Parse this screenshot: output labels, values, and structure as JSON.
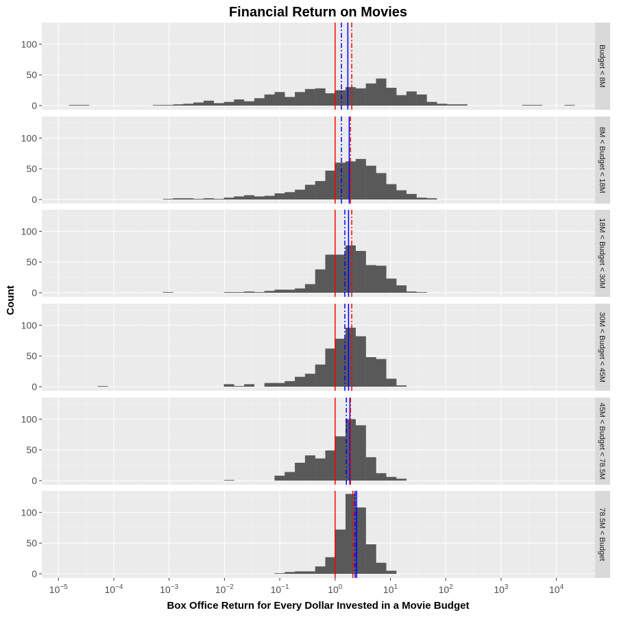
{
  "chart_data": {
    "type": "bar",
    "subtype": "faceted-histogram",
    "title": "Financial Return on Movies",
    "xlabel": "Box Office Return for Every Dollar Invested in a Movie Budget",
    "ylabel": "Count",
    "x_scale": "log10",
    "x_range": [
      5e-06,
      50000
    ],
    "y_range": [
      0,
      130
    ],
    "y_ticks": [
      0,
      50,
      100
    ],
    "x_ticks": [
      {
        "base": "10",
        "exp": "−5",
        "value": 1e-05
      },
      {
        "base": "10",
        "exp": "−4",
        "value": 0.0001
      },
      {
        "base": "10",
        "exp": "−3",
        "value": 0.001
      },
      {
        "base": "10",
        "exp": "−2",
        "value": 0.01
      },
      {
        "base": "10",
        "exp": "−1",
        "value": 0.1
      },
      {
        "base": "10",
        "exp": "0",
        "value": 1
      },
      {
        "base": "10",
        "exp": "1",
        "value": 10
      },
      {
        "base": "10",
        "exp": "2",
        "value": 100
      },
      {
        "base": "10",
        "exp": "3",
        "value": 1000
      },
      {
        "base": "10",
        "exp": "4",
        "value": 10000
      }
    ],
    "grid": true,
    "bin_width_log10": 0.186,
    "bar_color": "#595959",
    "reference_lines": [
      {
        "color": "#ff0000",
        "style": "solid"
      },
      {
        "color": "#ff0000",
        "style": "dashdot"
      },
      {
        "color": "#0000ff",
        "style": "solid"
      },
      {
        "color": "#0000ff",
        "style": "dashdot"
      }
    ],
    "panels": [
      {
        "strip": "Budget < 8M",
        "lines": {
          "red_solid": 1.0,
          "red_dashdot": 2.0,
          "blue_solid": 1.7,
          "blue_dashdot": 1.3
        },
        "bins": [
          [
            1.92e-05,
            1
          ],
          [
            2.92e-05,
            1
          ],
          [
            0.00063,
            1
          ],
          [
            0.00096,
            1
          ],
          [
            0.00146,
            2
          ],
          [
            0.00223,
            3
          ],
          [
            0.0034,
            5
          ],
          [
            0.0052,
            8
          ],
          [
            0.0079,
            4
          ],
          [
            0.0121,
            6
          ],
          [
            0.0184,
            10
          ],
          [
            0.0281,
            7
          ],
          [
            0.0429,
            12
          ],
          [
            0.0654,
            18
          ],
          [
            0.0997,
            22
          ],
          [
            0.152,
            14
          ],
          [
            0.232,
            22
          ],
          [
            0.354,
            27
          ],
          [
            0.54,
            28
          ],
          [
            0.823,
            20
          ],
          [
            1.25,
            25
          ],
          [
            1.91,
            30
          ],
          [
            2.92,
            28
          ],
          [
            4.46,
            36
          ],
          [
            6.8,
            44
          ],
          [
            10.4,
            29
          ],
          [
            15.8,
            17
          ],
          [
            24.1,
            23
          ],
          [
            36.8,
            18
          ],
          [
            56.1,
            6
          ],
          [
            85.6,
            3
          ],
          [
            130,
            2
          ],
          [
            199,
            2
          ],
          [
            2970,
            1
          ],
          [
            4530,
            1
          ],
          [
            17300,
            1
          ]
        ]
      },
      {
        "strip": "8M < Budget < 18M",
        "lines": {
          "red_solid": 1.0,
          "red_dashdot": 1.9,
          "blue_solid": 1.8,
          "blue_dashdot": 1.3
        },
        "bins": [
          [
            0.00096,
            1
          ],
          [
            0.00146,
            2
          ],
          [
            0.00223,
            2
          ],
          [
            0.0034,
            1
          ],
          [
            0.0052,
            2
          ],
          [
            0.0079,
            1
          ],
          [
            0.0121,
            3
          ],
          [
            0.0184,
            5
          ],
          [
            0.0281,
            7
          ],
          [
            0.0429,
            5
          ],
          [
            0.0654,
            6
          ],
          [
            0.0997,
            10
          ],
          [
            0.152,
            12
          ],
          [
            0.232,
            16
          ],
          [
            0.354,
            24
          ],
          [
            0.54,
            30
          ],
          [
            0.823,
            47
          ],
          [
            1.25,
            60
          ],
          [
            1.91,
            62
          ],
          [
            2.92,
            66
          ],
          [
            4.46,
            55
          ],
          [
            6.8,
            43
          ],
          [
            10.4,
            25
          ],
          [
            15.8,
            15
          ],
          [
            24.1,
            9
          ],
          [
            36.8,
            3
          ],
          [
            56.1,
            2
          ]
        ]
      },
      {
        "strip": "18M < Budget < 30M",
        "lines": {
          "red_solid": 1.0,
          "red_dashdot": 2.0,
          "blue_solid": 1.75,
          "blue_dashdot": 1.5
        },
        "bins": [
          [
            0.00096,
            1
          ],
          [
            0.0121,
            1
          ],
          [
            0.0184,
            1
          ],
          [
            0.0281,
            2
          ],
          [
            0.0429,
            1
          ],
          [
            0.0654,
            3
          ],
          [
            0.0997,
            5
          ],
          [
            0.152,
            5
          ],
          [
            0.232,
            7
          ],
          [
            0.354,
            14
          ],
          [
            0.54,
            38
          ],
          [
            0.823,
            62
          ],
          [
            1.25,
            62
          ],
          [
            1.91,
            77
          ],
          [
            2.92,
            68
          ],
          [
            4.46,
            45
          ],
          [
            6.8,
            44
          ],
          [
            10.4,
            23
          ],
          [
            15.8,
            12
          ],
          [
            24.1,
            2
          ],
          [
            36.8,
            1
          ]
        ]
      },
      {
        "strip": "30M < Budget < 45M",
        "lines": {
          "red_solid": 1.0,
          "red_dashdot": 2.0,
          "blue_solid": 1.75,
          "blue_dashdot": 1.5
        },
        "bins": [
          [
            6.38e-05,
            1
          ],
          [
            0.0121,
            4
          ],
          [
            0.0184,
            1
          ],
          [
            0.0281,
            4
          ],
          [
            0.0654,
            6
          ],
          [
            0.0997,
            6
          ],
          [
            0.152,
            9
          ],
          [
            0.232,
            16
          ],
          [
            0.354,
            21
          ],
          [
            0.54,
            36
          ],
          [
            0.823,
            62
          ],
          [
            1.25,
            78
          ],
          [
            1.91,
            96
          ],
          [
            2.92,
            82
          ],
          [
            4.46,
            48
          ],
          [
            6.8,
            45
          ],
          [
            10.4,
            13
          ],
          [
            15.8,
            2
          ]
        ]
      },
      {
        "strip": "45M < Budget < 78.5M",
        "lines": {
          "red_solid": 1.0,
          "red_dashdot": 1.9,
          "blue_solid": 1.85,
          "blue_dashdot": 1.6
        },
        "bins": [
          [
            0.0121,
            1
          ],
          [
            0.0997,
            8
          ],
          [
            0.152,
            14
          ],
          [
            0.232,
            29
          ],
          [
            0.354,
            41
          ],
          [
            0.54,
            36
          ],
          [
            0.823,
            49
          ],
          [
            1.25,
            72
          ],
          [
            1.91,
            100
          ],
          [
            2.92,
            90
          ],
          [
            4.46,
            38
          ],
          [
            6.8,
            12
          ],
          [
            10.4,
            6
          ],
          [
            15.8,
            3
          ]
        ]
      },
      {
        "strip": "78.5M < Budget",
        "lines": {
          "red_solid": 1.0,
          "red_dashdot": 2.1,
          "blue_solid": 2.45,
          "blue_dashdot": 2.3
        },
        "bins": [
          [
            0.0997,
            1
          ],
          [
            0.152,
            3
          ],
          [
            0.232,
            4
          ],
          [
            0.354,
            4
          ],
          [
            0.54,
            12
          ],
          [
            0.823,
            27
          ],
          [
            1.25,
            72
          ],
          [
            1.91,
            130
          ],
          [
            2.92,
            108
          ],
          [
            4.46,
            48
          ],
          [
            6.8,
            18
          ],
          [
            10.4,
            5
          ]
        ]
      }
    ]
  }
}
